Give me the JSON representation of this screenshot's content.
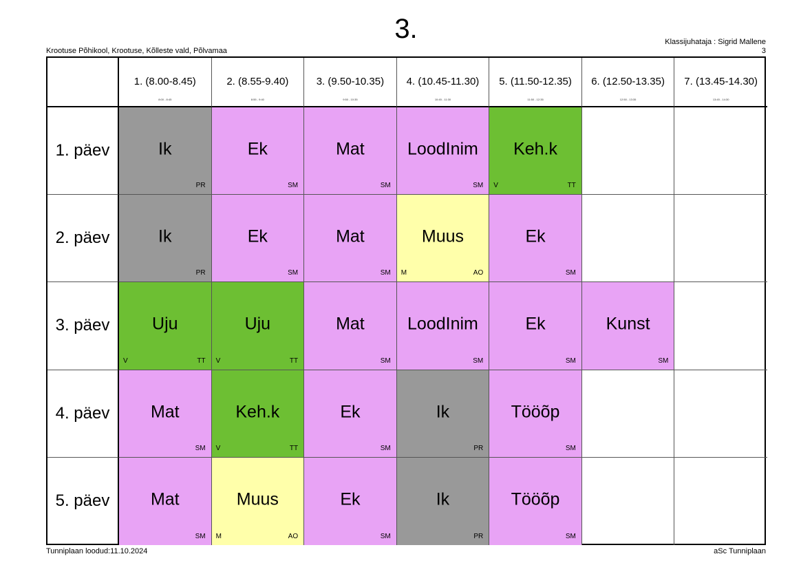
{
  "header": {
    "title": "3.",
    "school": "Krootuse Põhikool, Krootuse, Kõlleste vald, Põlvamaa",
    "class_teacher": "Klassijuhataja : Sigrid Mallene",
    "class_number": "3"
  },
  "footer": {
    "created": "Tunniplaan loodud:11.10.2024",
    "software": "aSc Tunniplaan"
  },
  "colors": {
    "pink": "#e8a3f5",
    "gray": "#999999",
    "green": "#6dbf33",
    "yellow": "#ffffaa",
    "white": "#ffffff"
  },
  "periods": [
    {
      "label": "1. (8.00-8.45)",
      "time": "8:00 - 8:45"
    },
    {
      "label": "2. (8.55-9.40)",
      "time": "8:55 - 9:40"
    },
    {
      "label": "3. (9.50-10.35)",
      "time": "9:50 - 10:35"
    },
    {
      "label": "4. (10.45-11.30)",
      "time": "10:45 - 11:30"
    },
    {
      "label": "5. (11.50-12.35)",
      "time": "11:50 - 12:35"
    },
    {
      "label": "6. (12.50-13.35)",
      "time": "12:50 - 13:35"
    },
    {
      "label": "7. (13.45-14.30)",
      "time": "13:45 - 14:30"
    }
  ],
  "days": [
    {
      "label": "1. päev",
      "lessons": [
        {
          "subject": "Ik",
          "teacher": "PR",
          "room": "",
          "color": "gray"
        },
        {
          "subject": "Ek",
          "teacher": "SM",
          "room": "",
          "color": "pink"
        },
        {
          "subject": "Mat",
          "teacher": "SM",
          "room": "",
          "color": "pink"
        },
        {
          "subject": "LoodInim",
          "teacher": "SM",
          "room": "",
          "color": "pink"
        },
        {
          "subject": "Keh.k",
          "teacher": "TT",
          "room": "V",
          "color": "green"
        },
        null,
        null
      ]
    },
    {
      "label": "2. päev",
      "lessons": [
        {
          "subject": "Ik",
          "teacher": "PR",
          "room": "",
          "color": "gray"
        },
        {
          "subject": "Ek",
          "teacher": "SM",
          "room": "",
          "color": "pink"
        },
        {
          "subject": "Mat",
          "teacher": "SM",
          "room": "",
          "color": "pink"
        },
        {
          "subject": "Muus",
          "teacher": "AO",
          "room": "M",
          "color": "yellow"
        },
        {
          "subject": "Ek",
          "teacher": "SM",
          "room": "",
          "color": "pink"
        },
        null,
        null
      ]
    },
    {
      "label": "3. päev",
      "lessons": [
        {
          "subject": "Uju",
          "teacher": "TT",
          "room": "V",
          "color": "green"
        },
        {
          "subject": "Uju",
          "teacher": "TT",
          "room": "V",
          "color": "green"
        },
        {
          "subject": "Mat",
          "teacher": "SM",
          "room": "",
          "color": "pink"
        },
        {
          "subject": "LoodInim",
          "teacher": "SM",
          "room": "",
          "color": "pink"
        },
        {
          "subject": "Ek",
          "teacher": "SM",
          "room": "",
          "color": "pink"
        },
        {
          "subject": "Kunst",
          "teacher": "SM",
          "room": "",
          "color": "pink"
        },
        null
      ]
    },
    {
      "label": "4. päev",
      "lessons": [
        {
          "subject": "Mat",
          "teacher": "SM",
          "room": "",
          "color": "pink"
        },
        {
          "subject": "Keh.k",
          "teacher": "TT",
          "room": "V",
          "color": "green"
        },
        {
          "subject": "Ek",
          "teacher": "SM",
          "room": "",
          "color": "pink"
        },
        {
          "subject": "Ik",
          "teacher": "PR",
          "room": "",
          "color": "gray"
        },
        {
          "subject": "Tööõp",
          "teacher": "SM",
          "room": "",
          "color": "pink"
        },
        null,
        null
      ]
    },
    {
      "label": "5. päev",
      "lessons": [
        {
          "subject": "Mat",
          "teacher": "SM",
          "room": "",
          "color": "pink"
        },
        {
          "subject": "Muus",
          "teacher": "AO",
          "room": "M",
          "color": "yellow"
        },
        {
          "subject": "Ek",
          "teacher": "SM",
          "room": "",
          "color": "pink"
        },
        {
          "subject": "Ik",
          "teacher": "PR",
          "room": "",
          "color": "gray"
        },
        {
          "subject": "Tööõp",
          "teacher": "SM",
          "room": "",
          "color": "pink"
        },
        null,
        null
      ]
    }
  ]
}
